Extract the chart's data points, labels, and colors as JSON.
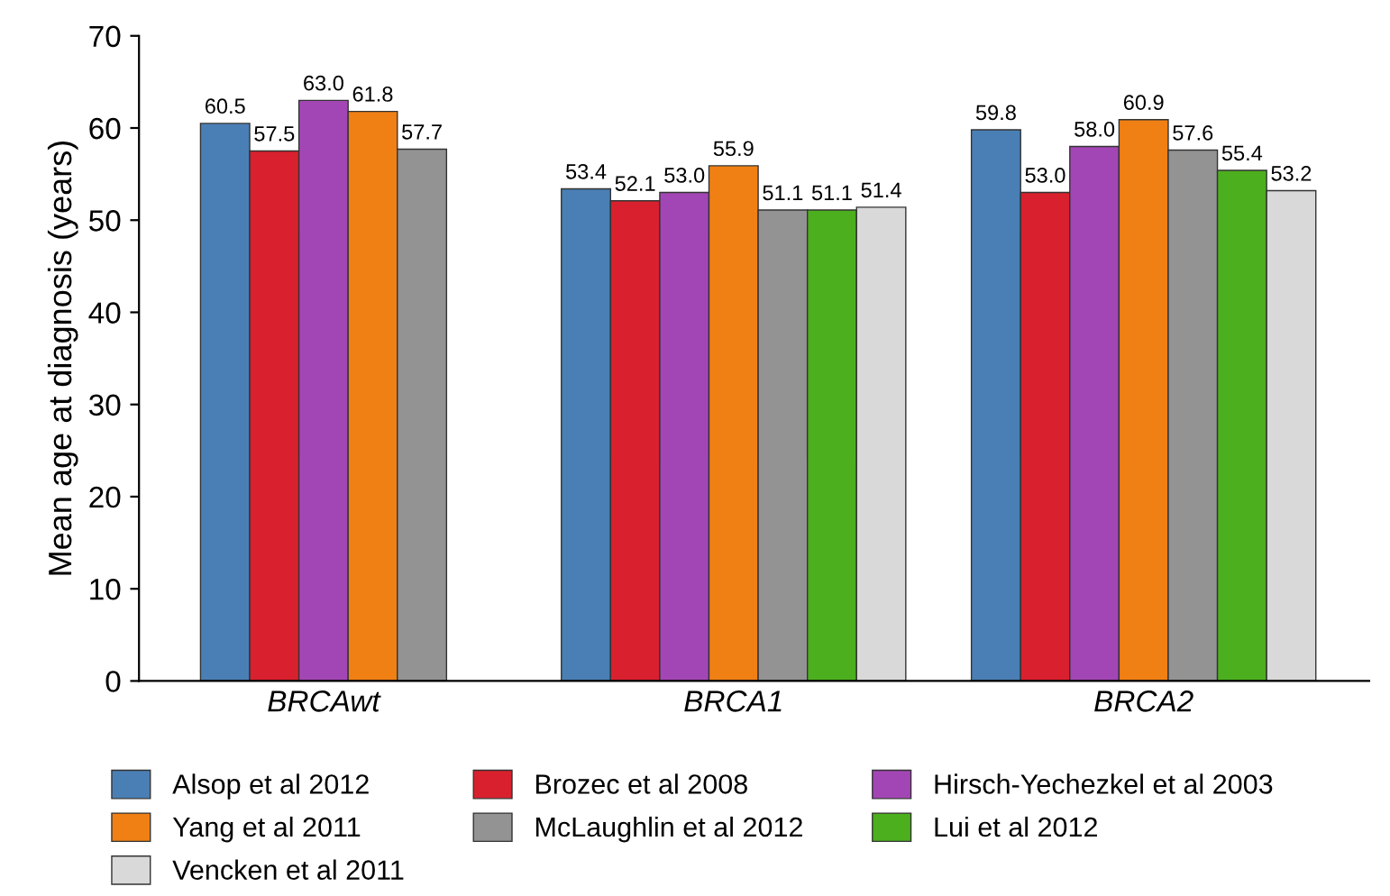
{
  "chart_data": {
    "type": "bar",
    "ylabel": "Mean age at diagnosis (years)",
    "categories": [
      "BRCAwt",
      "BRCA1",
      "BRCA2"
    ],
    "series": [
      {
        "name": "Alsop et al 2012",
        "color": "#4a7fb5",
        "values": [
          60.5,
          53.4,
          59.8
        ],
        "value_labels": [
          "60.5",
          "53.4",
          "59.8"
        ]
      },
      {
        "name": "Brozec et al 2008",
        "color": "#d9202e",
        "values": [
          57.5,
          52.1,
          53.0
        ],
        "value_labels": [
          "57.5",
          "52.1",
          "53.0"
        ]
      },
      {
        "name": "Hirsch-Yechezkel et al 2003",
        "color": "#a346b5",
        "values": [
          63.0,
          53.0,
          58.0
        ],
        "value_labels": [
          "63.0",
          "53.0",
          "58.0"
        ]
      },
      {
        "name": "Yang et al 2011",
        "color": "#f08014",
        "values": [
          61.8,
          55.9,
          60.9
        ],
        "value_labels": [
          "61.8",
          "55.9",
          "60.9"
        ]
      },
      {
        "name": "McLaughlin et al 2012",
        "color": "#939393",
        "values": [
          57.7,
          51.1,
          57.6
        ],
        "value_labels": [
          "57.7",
          "51.1",
          "57.6"
        ]
      },
      {
        "name": "Lui et al 2012",
        "color": "#4caf1e",
        "values": [
          null,
          51.1,
          55.4
        ],
        "value_labels": [
          null,
          "51.1",
          "55.4"
        ]
      },
      {
        "name": "Vencken et al 2011",
        "color": "#d9d9d9",
        "values": [
          null,
          51.4,
          53.2
        ],
        "value_labels": [
          null,
          "51.4",
          "53.2"
        ]
      }
    ],
    "ylim": [
      0,
      70
    ],
    "yticks": [
      0,
      10,
      20,
      30,
      40,
      50,
      60,
      70
    ],
    "grid": false,
    "legend": "bottom"
  }
}
